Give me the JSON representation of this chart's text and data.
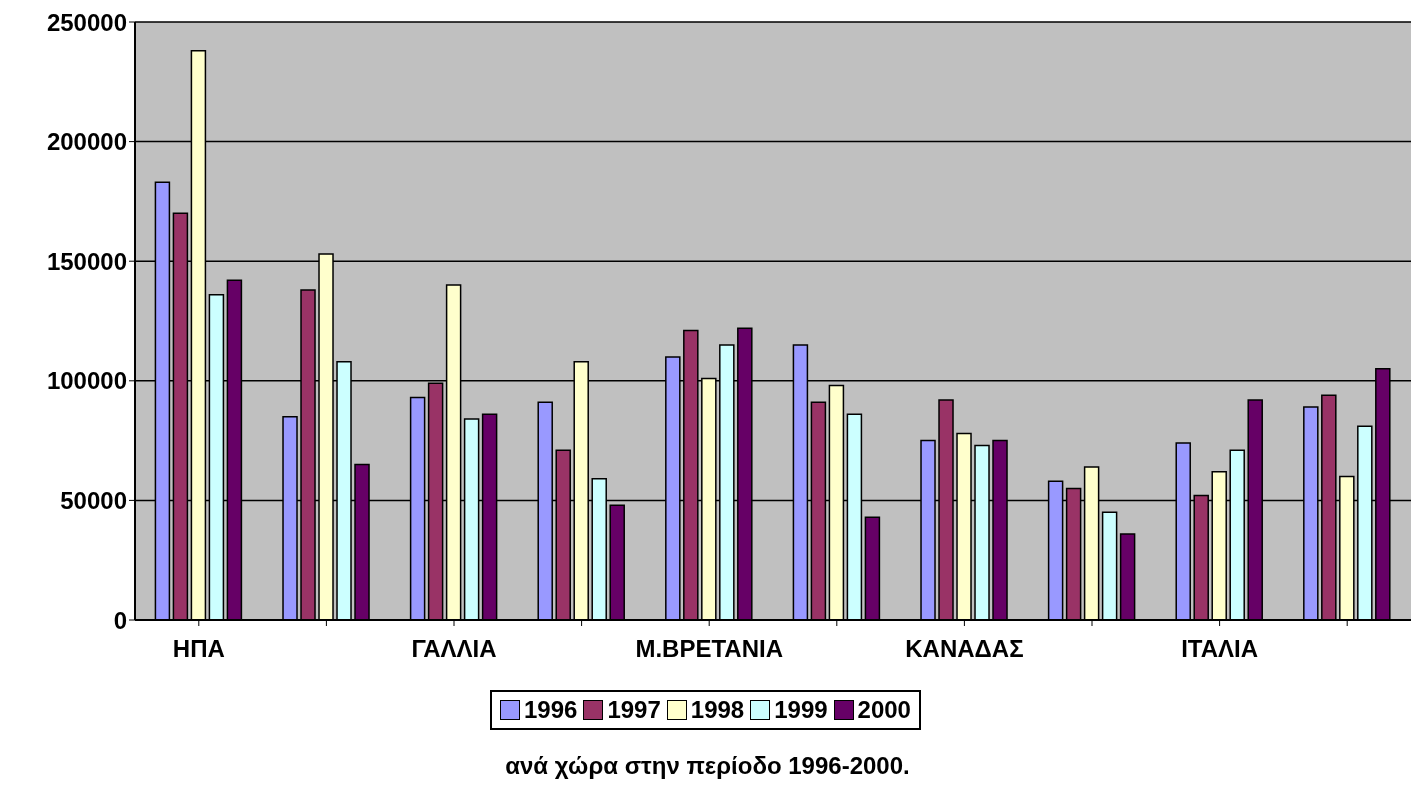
{
  "chart_data": {
    "type": "bar",
    "title": "ανά χώρα στην περίοδο 1996-2000.",
    "categories": [
      "ΗΠΑ",
      null,
      "ΓΑΛΛΙΑ",
      null,
      "Μ.ΒΡΕΤΑΝΙΑ",
      null,
      "ΚΑΝΑΔΑΣ",
      null,
      "ΙΤΑΛΙΑ",
      null
    ],
    "series": [
      {
        "name": "1996",
        "color": "#9999ff",
        "values": [
          183000,
          85000,
          93000,
          91000,
          110000,
          115000,
          75000,
          58000,
          74000,
          89000
        ]
      },
      {
        "name": "1997",
        "color": "#993366",
        "values": [
          170000,
          138000,
          99000,
          71000,
          121000,
          91000,
          92000,
          55000,
          52000,
          94000
        ]
      },
      {
        "name": "1998",
        "color": "#ffffcc",
        "values": [
          238000,
          153000,
          140000,
          108000,
          101000,
          98000,
          78000,
          64000,
          62000,
          60000
        ]
      },
      {
        "name": "1999",
        "color": "#ccffff",
        "values": [
          136000,
          108000,
          84000,
          59000,
          115000,
          86000,
          73000,
          45000,
          71000,
          81000
        ]
      },
      {
        "name": "2000",
        "color": "#660066",
        "values": [
          142000,
          65000,
          86000,
          48000,
          122000,
          43000,
          75000,
          36000,
          92000,
          105000
        ]
      }
    ],
    "ylim": [
      0,
      250000
    ],
    "yticks": [
      0,
      50000,
      100000,
      150000,
      200000,
      250000
    ],
    "grid": "y",
    "legend": "bottom"
  }
}
